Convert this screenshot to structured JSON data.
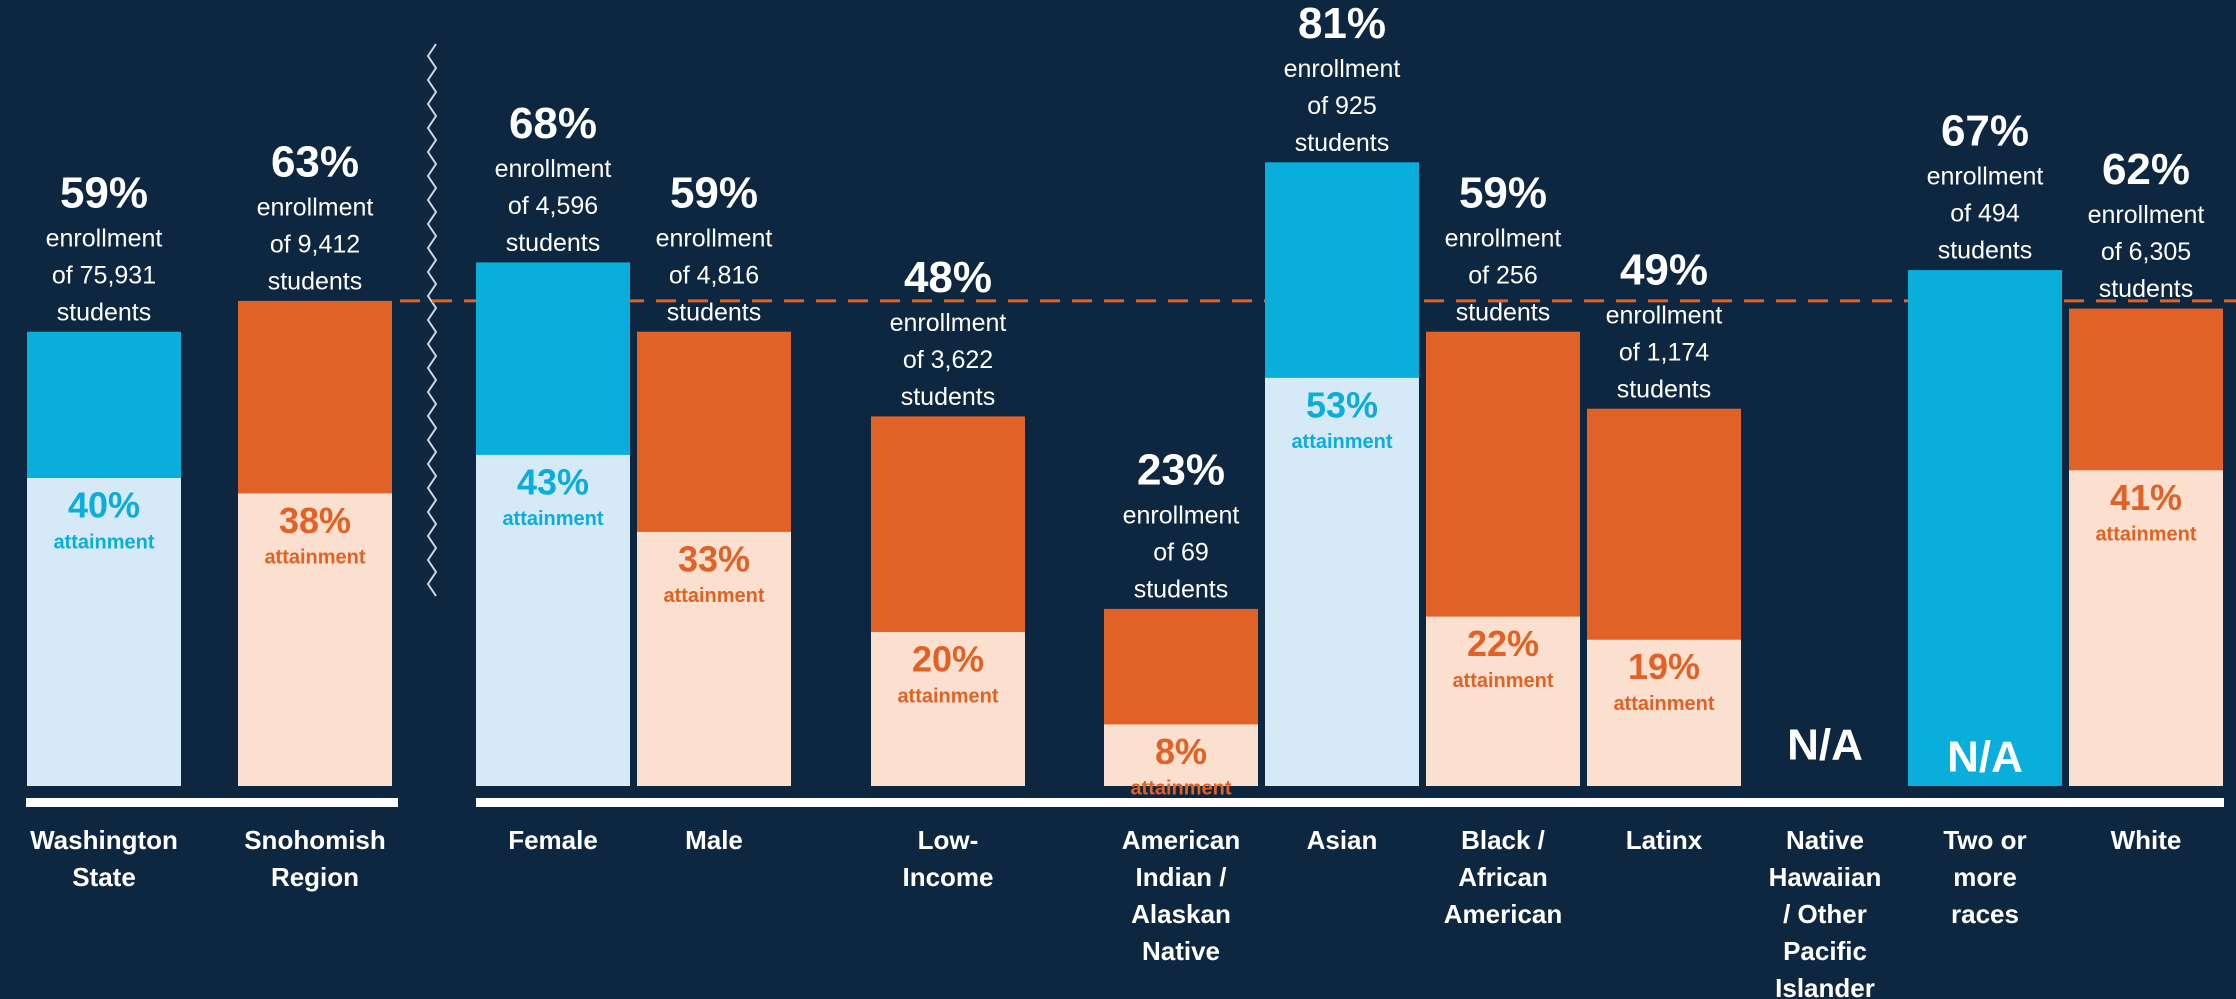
{
  "chart_data": {
    "type": "bar",
    "categories": [
      [
        "Washington",
        "State"
      ],
      [
        "Snohomish",
        "Region"
      ],
      [
        "Female"
      ],
      [
        "Male"
      ],
      [
        "Low-",
        "Income"
      ],
      [
        "American",
        "Indian /",
        "Alaskan",
        "Native"
      ],
      [
        "Asian"
      ],
      [
        "Black /",
        "African",
        "American"
      ],
      [
        "Latinx"
      ],
      [
        "Native",
        "Hawaiian",
        "/ Other",
        "Pacific",
        "Islander"
      ],
      [
        "Two or",
        "more",
        "races"
      ],
      [
        "White"
      ]
    ],
    "series": [
      {
        "name": "enrollment",
        "values": [
          59,
          63,
          68,
          59,
          48,
          23,
          81,
          59,
          49,
          null,
          67,
          62
        ],
        "value_labels": [
          "59%",
          "63%",
          "68%",
          "59%",
          "48%",
          "23%",
          "81%",
          "59%",
          "49%",
          "N/A",
          "67%",
          "62%"
        ],
        "colors": [
          "#0aaedb",
          "#e06227",
          "#0aaedb",
          "#e06227",
          "#e06227",
          "#e06227",
          "#0aaedb",
          "#e06227",
          "#e06227",
          "#e06227",
          "#0aaedb",
          "#e06227"
        ]
      },
      {
        "name": "attainment",
        "values": [
          40,
          38,
          43,
          33,
          20,
          8,
          53,
          22,
          19,
          null,
          null,
          41
        ],
        "value_labels": [
          "40%",
          "38%",
          "43%",
          "33%",
          "20%",
          "8%",
          "53%",
          "22%",
          "19%",
          null,
          "N/A",
          "41%"
        ],
        "colors": [
          "#d6e9f7",
          "#fbe0cf",
          "#d6e9f7",
          "#fbe0cf",
          "#fbe0cf",
          "#fbe0cf",
          "#d6e9f7",
          "#fbe0cf",
          "#fbe0cf",
          "#fbe0cf",
          "#d6e9f7",
          "#fbe0cf"
        ]
      }
    ],
    "student_counts": [
      "of 75,931",
      "of 9,412",
      "of 4,596",
      "of 4,816",
      "of 3,622",
      "of 69",
      "of 925",
      "of 256",
      "of 1,174",
      null,
      "of 494",
      "of 6,305"
    ],
    "students_label": "students",
    "reference_line": 63,
    "reference_color": "#e06227",
    "ylim": [
      0,
      100
    ]
  }
}
